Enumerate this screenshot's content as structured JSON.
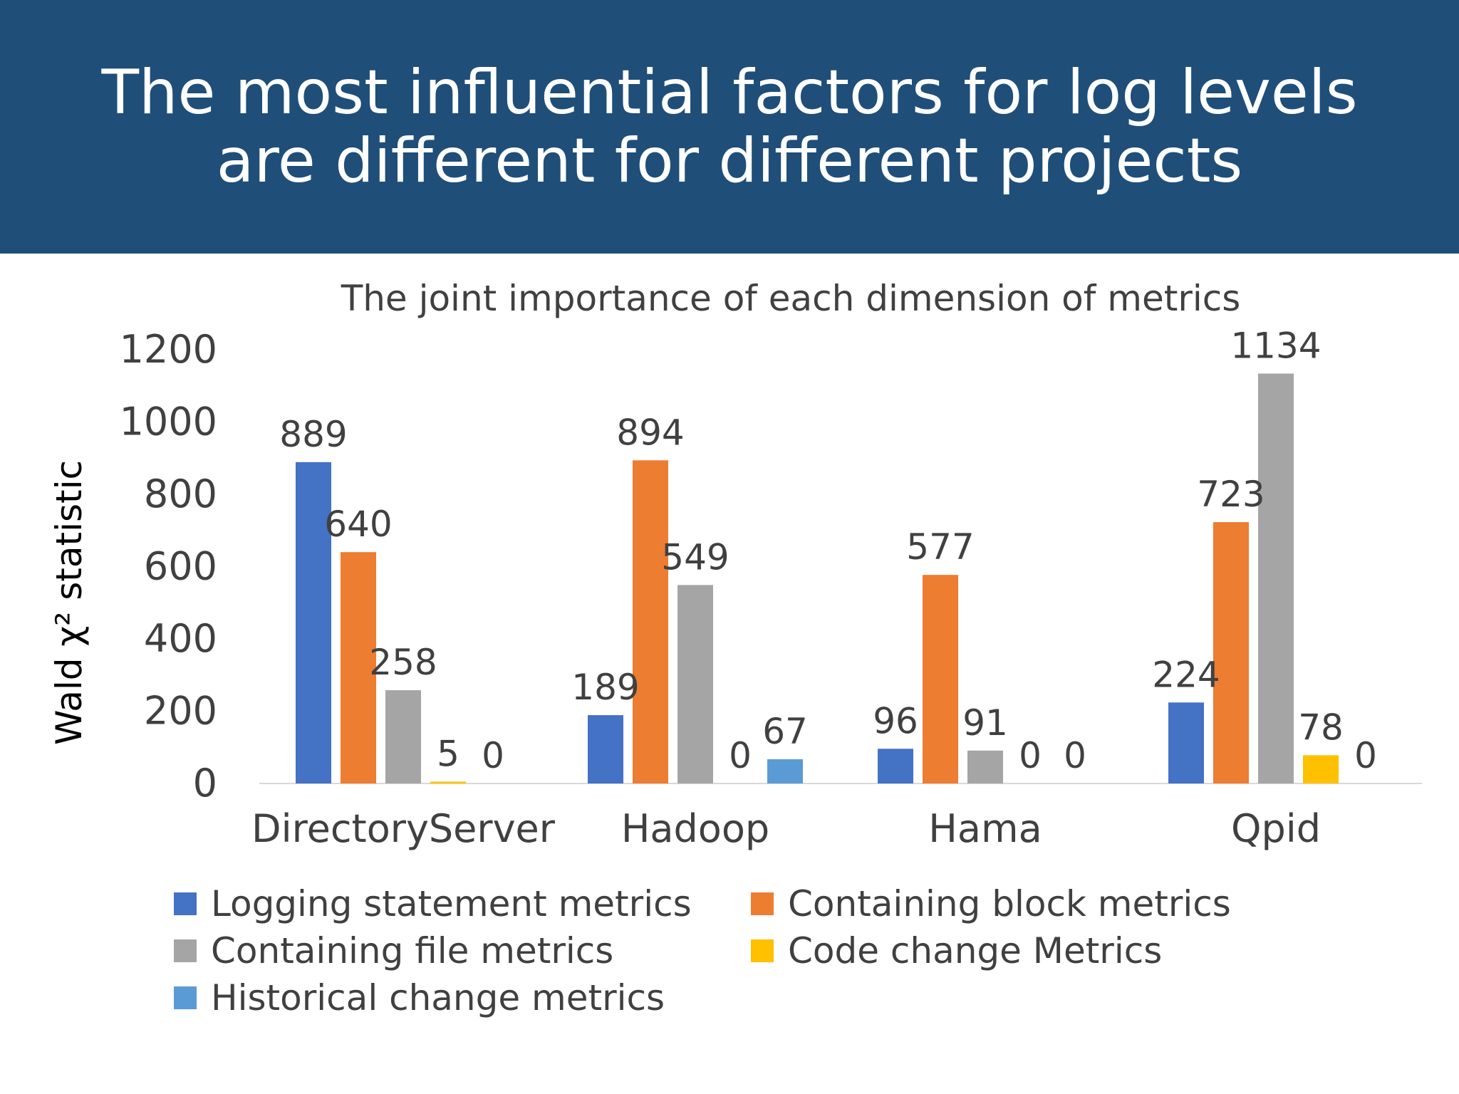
{
  "header": {
    "title": "The most influential factors for log levels are different for different projects",
    "background": "#1f4e79"
  },
  "chart_data": {
    "type": "bar",
    "title": "The joint importance of each dimension of metrics",
    "xlabel": "",
    "ylabel": "Wald χ² statistic",
    "ylim": [
      0,
      1200
    ],
    "yticks": [
      "0",
      "200",
      "400",
      "600",
      "800",
      "1000",
      "1200"
    ],
    "categories": [
      "DirectoryServer",
      "Hadoop",
      "Hama",
      "Qpid"
    ],
    "legend_position": "bottom",
    "series": [
      {
        "name": "Logging statement metrics",
        "color": "#4472c4",
        "values": [
          889,
          189,
          96,
          224
        ]
      },
      {
        "name": "Containing block metrics",
        "color": "#ed7d31",
        "values": [
          640,
          894,
          577,
          723
        ]
      },
      {
        "name": "Containing file metrics",
        "color": "#a5a5a5",
        "values": [
          258,
          549,
          91,
          1134
        ]
      },
      {
        "name": "Code change Metrics",
        "color": "#ffc000",
        "values": [
          5,
          0,
          0,
          78
        ]
      },
      {
        "name": "Historical change metrics",
        "color": "#5b9bd5",
        "values": [
          0,
          67,
          0,
          0
        ]
      }
    ]
  }
}
